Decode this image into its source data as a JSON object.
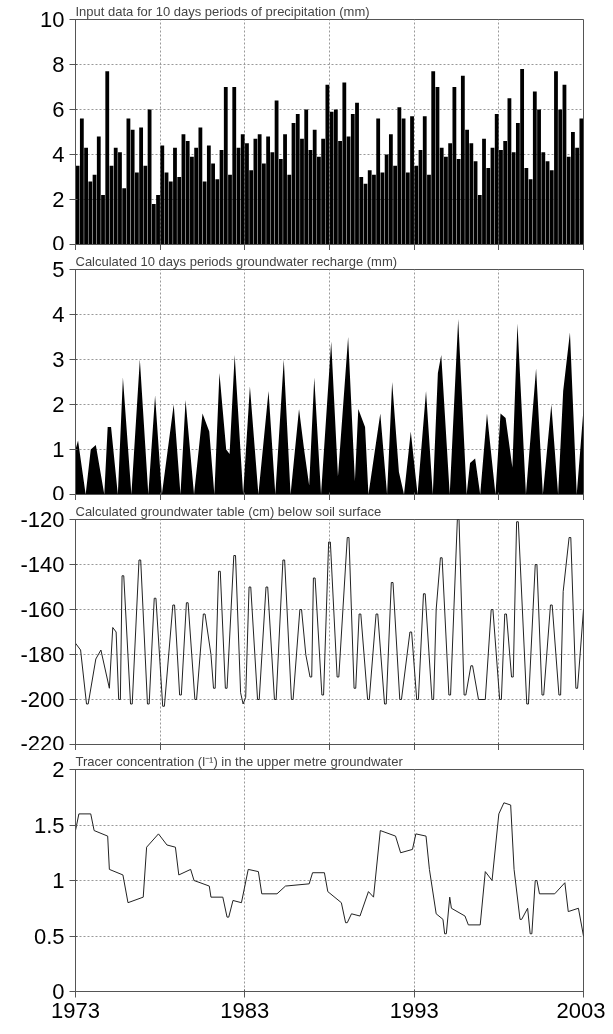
{
  "chart_data": [
    {
      "type": "bar",
      "title": "Input data for 10 days periods of precipitation (mm)",
      "color": "#000000",
      "xlim": [
        1973,
        2003
      ],
      "xticks": [
        1973,
        1978,
        1983,
        1988,
        1993,
        1998,
        2003
      ],
      "ylim": [
        0,
        10
      ],
      "yticks": [
        0,
        2,
        4,
        6,
        8,
        10
      ],
      "grid": true,
      "tick_labels": "y",
      "x": [
        1973.125,
        1973.375,
        1973.625,
        1973.875,
        1974.125,
        1974.375,
        1974.625,
        1974.875,
        1975.125,
        1975.375,
        1975.625,
        1975.875,
        1976.125,
        1976.375,
        1976.625,
        1976.875,
        1977.125,
        1977.375,
        1977.625,
        1977.875,
        1978.125,
        1978.375,
        1978.625,
        1978.875,
        1979.125,
        1979.375,
        1979.625,
        1979.875,
        1980.125,
        1980.375,
        1980.625,
        1980.875,
        1981.125,
        1981.375,
        1981.625,
        1981.875,
        1982.125,
        1982.375,
        1982.625,
        1982.875,
        1983.125,
        1983.375,
        1983.625,
        1983.875,
        1984.125,
        1984.375,
        1984.625,
        1984.875,
        1985.125,
        1985.375,
        1985.625,
        1985.875,
        1986.125,
        1986.375,
        1986.625,
        1986.875,
        1987.125,
        1987.375,
        1987.625,
        1987.875,
        1988.125,
        1988.375,
        1988.625,
        1988.875,
        1989.125,
        1989.375,
        1989.625,
        1989.875,
        1990.125,
        1990.375,
        1990.625,
        1990.875,
        1991.125,
        1991.375,
        1991.625,
        1991.875,
        1992.125,
        1992.375,
        1992.625,
        1992.875,
        1993.125,
        1993.375,
        1993.625,
        1993.875,
        1994.125,
        1994.375,
        1994.625,
        1994.875,
        1995.125,
        1995.375,
        1995.625,
        1995.875,
        1996.125,
        1996.375,
        1996.625,
        1996.875,
        1997.125,
        1997.375,
        1997.625,
        1997.875,
        1998.125,
        1998.375,
        1998.625,
        1998.875,
        1999.125,
        1999.375,
        1999.625,
        1999.875,
        2000.125,
        2000.375,
        2000.625,
        2000.875,
        2001.125,
        2001.375,
        2001.625,
        2001.875,
        2002.125,
        2002.375,
        2002.625,
        2002.875
      ],
      "values": [
        3.5,
        5.6,
        4.3,
        2.8,
        3.1,
        4.8,
        2.2,
        7.7,
        3.5,
        4.3,
        4.1,
        2.5,
        5.6,
        5.1,
        3.2,
        5.2,
        3.5,
        6.0,
        1.8,
        2.2,
        4.4,
        3.2,
        2.8,
        4.3,
        3.0,
        4.9,
        4.6,
        3.9,
        4.3,
        5.2,
        2.8,
        4.4,
        3.6,
        2.9,
        4.2,
        7.0,
        3.1,
        7.0,
        4.3,
        4.9,
        4.5,
        3.3,
        4.7,
        4.9,
        3.6,
        4.8,
        4.1,
        6.4,
        3.8,
        4.9,
        3.1,
        5.4,
        5.8,
        4.7,
        6.0,
        4.2,
        5.1,
        3.9,
        4.7,
        7.1,
        5.9,
        6.0,
        4.6,
        7.2,
        4.8,
        5.8,
        6.3,
        3.0,
        2.7,
        3.3,
        3.1,
        5.6,
        3.2,
        4.0,
        4.9,
        3.5,
        6.1,
        5.6,
        3.2,
        5.7,
        3.5,
        4.2,
        5.7,
        3.1,
        7.7,
        7.0,
        4.3,
        3.9,
        4.5,
        7.0,
        3.8,
        7.5,
        5.1,
        4.5,
        3.7,
        2.2,
        4.7,
        3.4,
        4.3,
        5.8,
        4.2,
        4.6,
        6.5,
        4.1,
        5.4,
        7.8,
        3.4,
        2.9,
        6.8,
        6.0,
        4.1,
        3.7,
        3.3,
        7.7,
        6.0,
        7.1,
        3.9,
        5.0,
        4.3,
        5.6
      ]
    },
    {
      "type": "area",
      "title": "Calculated 10 days periods groundwater recharge (mm)",
      "color": "#000000",
      "xlim": [
        1973,
        2003
      ],
      "xticks": [
        1973,
        1978,
        1983,
        1988,
        1993,
        1998,
        2003
      ],
      "ylim": [
        0,
        5
      ],
      "yticks": [
        0,
        1,
        2,
        3,
        4,
        5
      ],
      "grid": true,
      "tick_labels": "y",
      "x": [
        1973,
        1973.15,
        1973.6,
        1973.9,
        1974.2,
        1974.7,
        1974.9,
        1975.1,
        1975.5,
        1975.8,
        1976.3,
        1976.8,
        1977.3,
        1977.7,
        1978.1,
        1978.8,
        1979.2,
        1979.5,
        1980.0,
        1980.5,
        1980.9,
        1981.2,
        1981.5,
        1981.9,
        1982.1,
        1982.4,
        1982.9,
        1983.3,
        1983.8,
        1984.4,
        1984.8,
        1985.3,
        1985.7,
        1986.2,
        1986.5,
        1986.8,
        1987.1,
        1987.5,
        1988.1,
        1988.5,
        1989.1,
        1989.5,
        1989.7,
        1990.1,
        1990.3,
        1991.0,
        1991.4,
        1991.7,
        1992.1,
        1992.4,
        1992.8,
        1993.2,
        1993.7,
        1994.1,
        1994.4,
        1994.6,
        1995.1,
        1995.6,
        1996.1,
        1996.3,
        1996.6,
        1996.9,
        1997.3,
        1997.8,
        1998.1,
        1998.4,
        1998.8,
        1999.1,
        1999.6,
        2000.2,
        2000.6,
        2001.1,
        2001.5,
        2001.8,
        2002.2,
        2002.6,
        2003.0
      ],
      "values": [
        1.0,
        1.2,
        0,
        1.0,
        1.1,
        0,
        1.5,
        1.5,
        0,
        2.6,
        0,
        3.0,
        0,
        2.2,
        0,
        2.0,
        0,
        2.1,
        0,
        1.8,
        1.4,
        0,
        2.7,
        1.0,
        0.9,
        3.1,
        0,
        2.4,
        0,
        2.3,
        0,
        3.0,
        0,
        1.9,
        1.0,
        0.2,
        2.6,
        0,
        3.4,
        0.4,
        3.5,
        0.3,
        1.9,
        1.5,
        0,
        1.8,
        0,
        2.5,
        0.5,
        0,
        1.4,
        0,
        2.3,
        0,
        2.7,
        3.1,
        0,
        3.9,
        0,
        0.7,
        0.8,
        0,
        1.8,
        0,
        1.8,
        1.7,
        0.6,
        3.8,
        0,
        2.8,
        0,
        2.0,
        0,
        2.3,
        3.6,
        0,
        1.9
      ]
    },
    {
      "type": "line",
      "title": "Calculated groundwater table (cm) below soil surface",
      "color": "#222222",
      "xlim": [
        1973,
        2003
      ],
      "xticks": [
        1973,
        1978,
        1983,
        1988,
        1993,
        1998,
        2003
      ],
      "ylim": [
        -220,
        -120
      ],
      "yticks": [
        -220,
        -200,
        -180,
        -160,
        -140,
        -120
      ],
      "grid": true,
      "tick_labels": "y",
      "x": [
        1973,
        1973.3,
        1973.65,
        1973.75,
        1974.2,
        1974.5,
        1975.0,
        1975.2,
        1975.4,
        1975.55,
        1975.65,
        1975.75,
        1975.85,
        1976.25,
        1976.35,
        1976.75,
        1976.85,
        1977.25,
        1977.35,
        1977.65,
        1977.75,
        1978.15,
        1978.25,
        1978.75,
        1978.85,
        1979.15,
        1979.25,
        1979.55,
        1979.65,
        1980.05,
        1980.15,
        1980.55,
        1980.65,
        1981.0,
        1981.15,
        1981.25,
        1981.45,
        1981.55,
        1981.85,
        1981.95,
        1982.35,
        1982.45,
        1982.75,
        1982.9,
        1983.05,
        1983.25,
        1983.35,
        1983.75,
        1983.85,
        1984.25,
        1984.35,
        1984.75,
        1984.85,
        1985.25,
        1985.35,
        1985.75,
        1985.85,
        1986.25,
        1986.35,
        1986.6,
        1986.85,
        1986.95,
        1987.05,
        1987.15,
        1987.55,
        1987.65,
        1987.95,
        1988.05,
        1988.45,
        1988.55,
        1989.05,
        1989.15,
        1989.45,
        1989.55,
        1989.75,
        1989.85,
        1990.25,
        1990.35,
        1990.75,
        1990.85,
        1991.25,
        1991.35,
        1991.65,
        1991.75,
        1992.15,
        1992.25,
        1992.75,
        1992.85,
        1993.15,
        1993.25,
        1993.55,
        1993.65,
        1994.05,
        1994.15,
        1994.3,
        1994.55,
        1994.65,
        1995.05,
        1995.15,
        1995.55,
        1995.65,
        1995.95,
        1996.05,
        1996.35,
        1996.45,
        1996.8,
        1997.2,
        1997.55,
        1997.65,
        1998.05,
        1998.15,
        1998.35,
        1998.45,
        1998.75,
        1998.85,
        1999.05,
        1999.15,
        1999.65,
        1999.75,
        2000.15,
        2000.25,
        2000.55,
        2000.65,
        2001.05,
        2001.15,
        2001.55,
        2001.65,
        2001.8,
        2002.15,
        2002.25,
        2002.55,
        2002.65,
        2003
      ],
      "values": [
        -175,
        -178,
        -202,
        -202,
        -182,
        -178,
        -195,
        -168,
        -170,
        -200,
        -200,
        -145,
        -145,
        -202,
        -202,
        -138,
        -138,
        -202,
        -202,
        -155,
        -155,
        -203,
        -203,
        -158,
        -158,
        -198,
        -198,
        -157,
        -157,
        -200,
        -200,
        -162,
        -162,
        -180,
        -195,
        -195,
        -143,
        -143,
        -195,
        -195,
        -136,
        -136,
        -197,
        -202,
        -199,
        -150,
        -150,
        -200,
        -200,
        -150,
        -150,
        -200,
        -200,
        -138,
        -138,
        -200,
        -200,
        -160,
        -160,
        -180,
        -190,
        -190,
        -146,
        -146,
        -198,
        -198,
        -130,
        -130,
        -190,
        -190,
        -128,
        -128,
        -195,
        -195,
        -162,
        -162,
        -200,
        -200,
        -162,
        -162,
        -202,
        -202,
        -148,
        -148,
        -200,
        -200,
        -170,
        -170,
        -200,
        -200,
        -153,
        -153,
        -200,
        -200,
        -160,
        -137,
        -137,
        -198,
        -198,
        -120,
        -120,
        -198,
        -198,
        -185,
        -185,
        -200,
        -200,
        -160,
        -160,
        -200,
        -200,
        -162,
        -162,
        -190,
        -190,
        -121,
        -121,
        -202,
        -202,
        -140,
        -140,
        -198,
        -198,
        -158,
        -158,
        -198,
        -198,
        -152,
        -128,
        -128,
        -195,
        -195,
        -160
      ]
    },
    {
      "type": "line",
      "title": "Tracer concentration (l⁻¹) in the upper metre groundwater",
      "color": "#222222",
      "xlim": [
        1973,
        2003
      ],
      "xticks": [
        1973,
        1983,
        1993,
        2003
      ],
      "ylim": [
        0,
        2
      ],
      "yticks": [
        0,
        0.5,
        1,
        1.5,
        2
      ],
      "grid": true,
      "x": [
        1973,
        1973.2,
        1973.9,
        1974.1,
        1974.9,
        1975.0,
        1975.8,
        1976.1,
        1977.0,
        1977.2,
        1977.9,
        1978.4,
        1978.9,
        1979.1,
        1979.8,
        1980.0,
        1980.9,
        1981.0,
        1981.7,
        1981.95,
        1982.05,
        1982.3,
        1982.8,
        1983.2,
        1983.8,
        1984.0,
        1984.9,
        1985.4,
        1986.8,
        1987.0,
        1987.7,
        1987.9,
        1988.7,
        1988.95,
        1989.05,
        1989.3,
        1989.8,
        1990.3,
        1990.6,
        1991.0,
        1991.9,
        1992.2,
        1992.9,
        1993.1,
        1993.7,
        1993.9,
        1994.3,
        1994.7,
        1994.8,
        1994.9,
        1995.1,
        1995.2,
        1996.0,
        1996.2,
        1996.9,
        1997.2,
        1997.6,
        1998.0,
        1998.3,
        1998.7,
        1998.9,
        1999.25,
        1999.35,
        1999.7,
        1999.85,
        1999.95,
        2000.15,
        2000.25,
        2000.4,
        2001.3,
        2001.9,
        2002.1,
        2002.7,
        2003.0
      ],
      "values": [
        1.45,
        1.6,
        1.6,
        1.45,
        1.4,
        1.1,
        1.05,
        0.8,
        0.85,
        1.3,
        1.42,
        1.32,
        1.3,
        1.05,
        1.1,
        1.0,
        0.95,
        0.85,
        0.85,
        0.67,
        0.67,
        0.82,
        0.8,
        1.1,
        1.08,
        0.88,
        0.88,
        0.95,
        0.97,
        1.07,
        1.07,
        0.9,
        0.8,
        0.62,
        0.62,
        0.7,
        0.68,
        0.9,
        0.85,
        1.45,
        1.4,
        1.25,
        1.28,
        1.42,
        1.4,
        1.1,
        0.7,
        0.65,
        0.52,
        0.52,
        0.85,
        0.75,
        0.68,
        0.6,
        0.6,
        1.08,
        1.0,
        1.6,
        1.7,
        1.68,
        1.1,
        0.65,
        0.65,
        0.75,
        0.52,
        0.52,
        1.0,
        1.0,
        0.88,
        0.88,
        0.98,
        0.72,
        0.75,
        0.5
      ]
    }
  ]
}
